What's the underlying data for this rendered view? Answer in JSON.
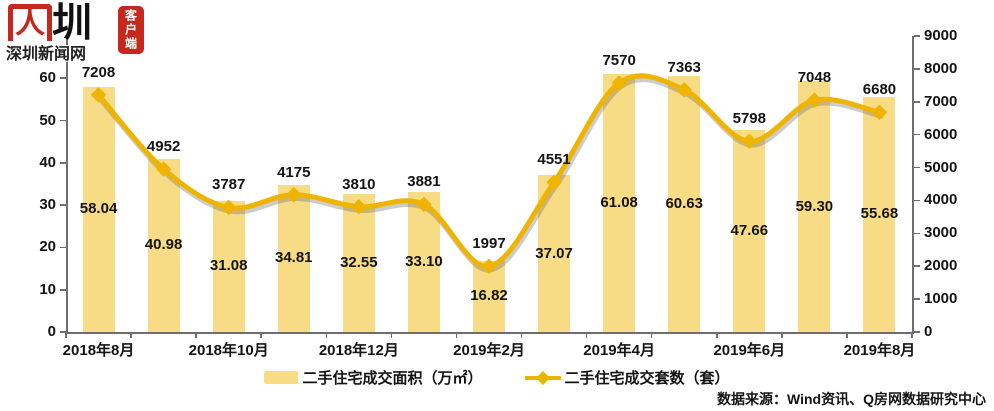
{
  "logo": {
    "mark_red": "人",
    "mark_black": "圳",
    "site_name": "深圳新闻网",
    "badge": "客户端"
  },
  "chart_data": {
    "type": "bar+line (dual axis)",
    "categories_labeled": [
      "2018年8月",
      "2018年10月",
      "2018年12月",
      "2019年2月",
      "2019年4月",
      "2019年6月",
      "2019年8月"
    ],
    "x_label_indices": [
      0,
      2,
      4,
      6,
      8,
      10,
      12
    ],
    "n_categories": 13,
    "series": [
      {
        "name": "二手住宅成交面积（万㎡）",
        "type": "bar",
        "axis": "left",
        "values": [
          58.04,
          40.98,
          31.08,
          34.81,
          32.55,
          33.1,
          16.82,
          37.07,
          61.08,
          60.63,
          47.66,
          59.3,
          55.68
        ],
        "decimals": 2
      },
      {
        "name": "二手住宅成交套数（套）",
        "type": "line",
        "axis": "right",
        "values": [
          7208,
          4952,
          3787,
          4175,
          3810,
          3881,
          1997,
          4551,
          7570,
          7363,
          5798,
          7048,
          6680
        ],
        "decimals": 0
      }
    ],
    "left_axis": {
      "min": 0,
      "max": 70,
      "shown_ticks": [
        0,
        10,
        20,
        30,
        40,
        50,
        60
      ]
    },
    "right_axis": {
      "min": 0,
      "max": 9000,
      "shown_ticks": [
        0,
        1000,
        2000,
        3000,
        4000,
        5000,
        6000,
        7000,
        8000,
        9000
      ]
    },
    "grid": "off",
    "colors": {
      "bar": "#F8DB85",
      "line": "#EFB400",
      "line_shadow": "rgba(110,110,110,0.35)",
      "axis": "#6e6e6e",
      "text": "#141414"
    }
  },
  "legend": [
    {
      "label": "二手住宅成交面积（万㎡）",
      "swatch": "bar"
    },
    {
      "label": "二手住宅成交套数（套）",
      "swatch": "line-diamond"
    }
  ],
  "source": {
    "text": "数据来源：Wind资讯、Q房网数据研究中心"
  }
}
